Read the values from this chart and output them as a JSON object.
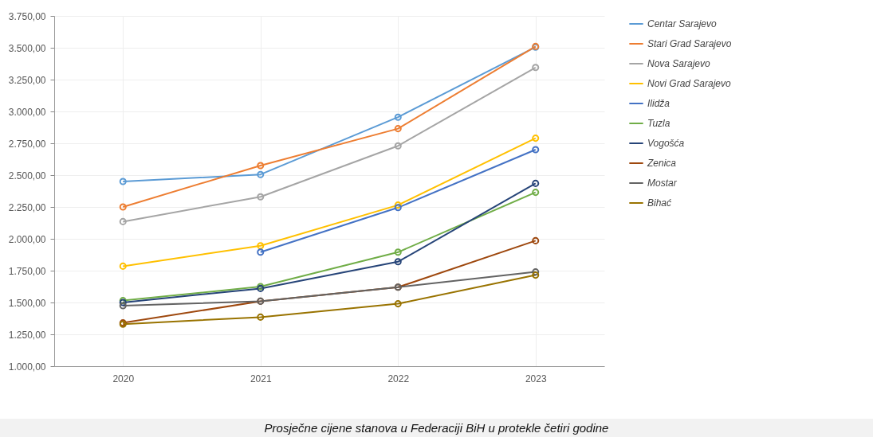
{
  "chart_data": {
    "type": "line",
    "annotations": [
      "Prosječne cijene stanova u Federaciji BiH u protekle četiri godine"
    ],
    "categories": [
      "2020",
      "2021",
      "2022",
      "2023"
    ],
    "series": [
      {
        "name": "Centar Sarajevo",
        "color": "#5b9bd5",
        "values": [
          2450,
          2505,
          2955,
          3505
        ]
      },
      {
        "name": "Stari Grad Sarajevo",
        "color": "#ed7d31",
        "values": [
          2250,
          2575,
          2865,
          3510
        ]
      },
      {
        "name": "Nova Sarajevo",
        "color": "#a5a5a5",
        "values": [
          2135,
          2330,
          2730,
          3345
        ]
      },
      {
        "name": "Novi Grad Sarajevo",
        "color": "#ffc000",
        "values": [
          1785,
          1945,
          2265,
          2790
        ]
      },
      {
        "name": "Ilidža",
        "color": "#4472c4",
        "values": [
          null,
          1895,
          2245,
          2700
        ]
      },
      {
        "name": "Tuzla",
        "color": "#70ad47",
        "values": [
          1515,
          1625,
          1895,
          2365
        ]
      },
      {
        "name": "Vogošća",
        "color": "#264478",
        "values": [
          1500,
          1610,
          1820,
          2435
        ]
      },
      {
        "name": "Zenica",
        "color": "#9e480e",
        "values": [
          1340,
          1510,
          1620,
          1985
        ]
      },
      {
        "name": "Mostar",
        "color": "#636363",
        "values": [
          1475,
          1510,
          1620,
          1740
        ]
      },
      {
        "name": "Bihać",
        "color": "#997300",
        "values": [
          1330,
          1385,
          1490,
          1715
        ]
      }
    ],
    "ylim": [
      1000,
      3750
    ],
    "yticks": [
      {
        "value": 1000,
        "label": "1.000,00"
      },
      {
        "value": 1250,
        "label": "1.250,00"
      },
      {
        "value": 1500,
        "label": "1.500,00"
      },
      {
        "value": 1750,
        "label": "1.750,00"
      },
      {
        "value": 2000,
        "label": "2.000,00"
      },
      {
        "value": 2250,
        "label": "2.250,00"
      },
      {
        "value": 2500,
        "label": "2.500,00"
      },
      {
        "value": 2750,
        "label": "2.750,00"
      },
      {
        "value": 3000,
        "label": "3.000,00"
      },
      {
        "value": 3250,
        "label": "3.250,00"
      },
      {
        "value": 3500,
        "label": "3.500,00"
      },
      {
        "value": 3750,
        "label": "3.750,00"
      }
    ],
    "grid": true,
    "legend": "right",
    "marker": "circle",
    "line_style": "solid"
  }
}
